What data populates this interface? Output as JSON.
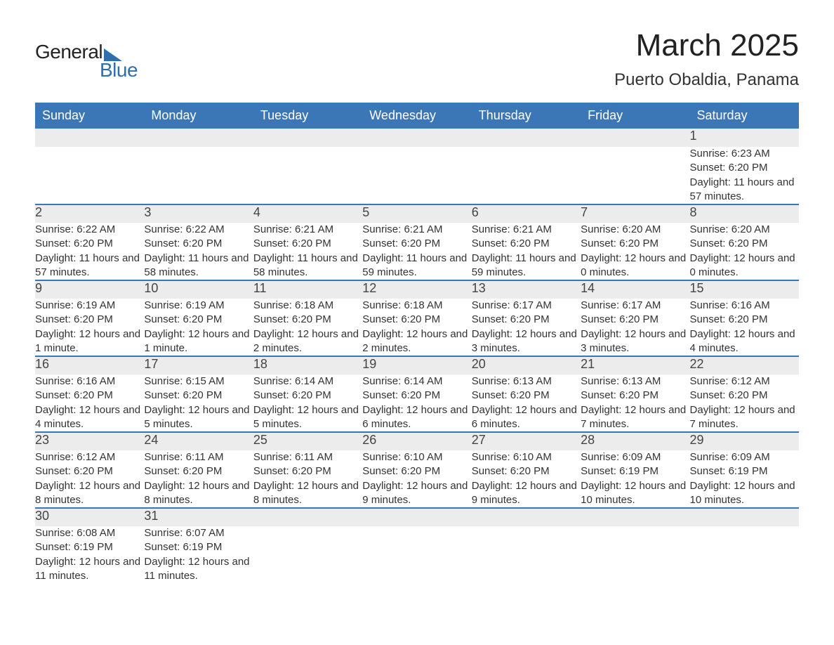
{
  "logo": {
    "top": "General",
    "bottom": "Blue"
  },
  "title": "March 2025",
  "subtitle": "Puerto Obaldia, Panama",
  "header_bg": "#3b77b7",
  "header_fg": "#ffffff",
  "daynum_bg": "#ececec",
  "row_border": "#3b77b7",
  "text_color": "#333333",
  "columns": [
    "Sunday",
    "Monday",
    "Tuesday",
    "Wednesday",
    "Thursday",
    "Friday",
    "Saturday"
  ],
  "weeks": [
    [
      null,
      null,
      null,
      null,
      null,
      null,
      {
        "n": "1",
        "sr": "6:23 AM",
        "ss": "6:20 PM",
        "dl": "11 hours and 57 minutes."
      }
    ],
    [
      {
        "n": "2",
        "sr": "6:22 AM",
        "ss": "6:20 PM",
        "dl": "11 hours and 57 minutes."
      },
      {
        "n": "3",
        "sr": "6:22 AM",
        "ss": "6:20 PM",
        "dl": "11 hours and 58 minutes."
      },
      {
        "n": "4",
        "sr": "6:21 AM",
        "ss": "6:20 PM",
        "dl": "11 hours and 58 minutes."
      },
      {
        "n": "5",
        "sr": "6:21 AM",
        "ss": "6:20 PM",
        "dl": "11 hours and 59 minutes."
      },
      {
        "n": "6",
        "sr": "6:21 AM",
        "ss": "6:20 PM",
        "dl": "11 hours and 59 minutes."
      },
      {
        "n": "7",
        "sr": "6:20 AM",
        "ss": "6:20 PM",
        "dl": "12 hours and 0 minutes."
      },
      {
        "n": "8",
        "sr": "6:20 AM",
        "ss": "6:20 PM",
        "dl": "12 hours and 0 minutes."
      }
    ],
    [
      {
        "n": "9",
        "sr": "6:19 AM",
        "ss": "6:20 PM",
        "dl": "12 hours and 1 minute."
      },
      {
        "n": "10",
        "sr": "6:19 AM",
        "ss": "6:20 PM",
        "dl": "12 hours and 1 minute."
      },
      {
        "n": "11",
        "sr": "6:18 AM",
        "ss": "6:20 PM",
        "dl": "12 hours and 2 minutes."
      },
      {
        "n": "12",
        "sr": "6:18 AM",
        "ss": "6:20 PM",
        "dl": "12 hours and 2 minutes."
      },
      {
        "n": "13",
        "sr": "6:17 AM",
        "ss": "6:20 PM",
        "dl": "12 hours and 3 minutes."
      },
      {
        "n": "14",
        "sr": "6:17 AM",
        "ss": "6:20 PM",
        "dl": "12 hours and 3 minutes."
      },
      {
        "n": "15",
        "sr": "6:16 AM",
        "ss": "6:20 PM",
        "dl": "12 hours and 4 minutes."
      }
    ],
    [
      {
        "n": "16",
        "sr": "6:16 AM",
        "ss": "6:20 PM",
        "dl": "12 hours and 4 minutes."
      },
      {
        "n": "17",
        "sr": "6:15 AM",
        "ss": "6:20 PM",
        "dl": "12 hours and 5 minutes."
      },
      {
        "n": "18",
        "sr": "6:14 AM",
        "ss": "6:20 PM",
        "dl": "12 hours and 5 minutes."
      },
      {
        "n": "19",
        "sr": "6:14 AM",
        "ss": "6:20 PM",
        "dl": "12 hours and 6 minutes."
      },
      {
        "n": "20",
        "sr": "6:13 AM",
        "ss": "6:20 PM",
        "dl": "12 hours and 6 minutes."
      },
      {
        "n": "21",
        "sr": "6:13 AM",
        "ss": "6:20 PM",
        "dl": "12 hours and 7 minutes."
      },
      {
        "n": "22",
        "sr": "6:12 AM",
        "ss": "6:20 PM",
        "dl": "12 hours and 7 minutes."
      }
    ],
    [
      {
        "n": "23",
        "sr": "6:12 AM",
        "ss": "6:20 PM",
        "dl": "12 hours and 8 minutes."
      },
      {
        "n": "24",
        "sr": "6:11 AM",
        "ss": "6:20 PM",
        "dl": "12 hours and 8 minutes."
      },
      {
        "n": "25",
        "sr": "6:11 AM",
        "ss": "6:20 PM",
        "dl": "12 hours and 8 minutes."
      },
      {
        "n": "26",
        "sr": "6:10 AM",
        "ss": "6:20 PM",
        "dl": "12 hours and 9 minutes."
      },
      {
        "n": "27",
        "sr": "6:10 AM",
        "ss": "6:20 PM",
        "dl": "12 hours and 9 minutes."
      },
      {
        "n": "28",
        "sr": "6:09 AM",
        "ss": "6:19 PM",
        "dl": "12 hours and 10 minutes."
      },
      {
        "n": "29",
        "sr": "6:09 AM",
        "ss": "6:19 PM",
        "dl": "12 hours and 10 minutes."
      }
    ],
    [
      {
        "n": "30",
        "sr": "6:08 AM",
        "ss": "6:19 PM",
        "dl": "12 hours and 11 minutes."
      },
      {
        "n": "31",
        "sr": "6:07 AM",
        "ss": "6:19 PM",
        "dl": "12 hours and 11 minutes."
      },
      null,
      null,
      null,
      null,
      null
    ]
  ],
  "labels": {
    "sunrise": "Sunrise: ",
    "sunset": "Sunset: ",
    "daylight": "Daylight: "
  }
}
